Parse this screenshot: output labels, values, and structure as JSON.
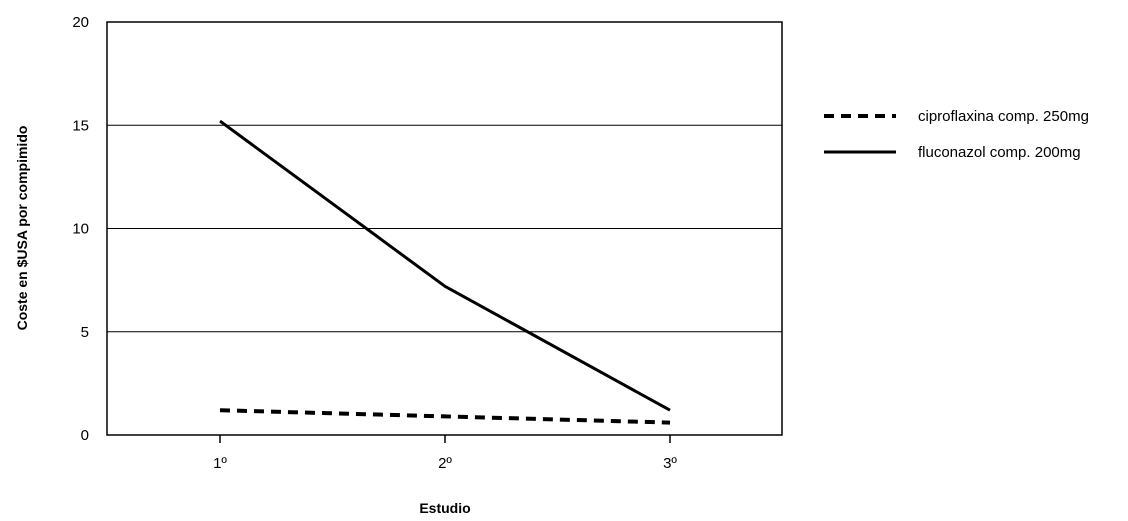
{
  "chart_data": {
    "type": "line",
    "title": "",
    "xlabel": "Estudio",
    "ylabel": "Coste en $USA por compimido",
    "categories": [
      "1º",
      "2º",
      "3º"
    ],
    "ylim": [
      0,
      20
    ],
    "yticks": [
      "0",
      "5",
      "10",
      "15",
      "20"
    ],
    "grid": true,
    "legend_position": "right",
    "series": [
      {
        "name": "ciproflaxina comp. 250mg",
        "values": [
          1.2,
          0.9,
          0.6
        ],
        "line_style": "dashed",
        "color": "#000000"
      },
      {
        "name": "fluconazol comp. 200mg",
        "values": [
          15.2,
          7.2,
          1.2
        ],
        "line_style": "solid",
        "color": "#000000"
      }
    ]
  }
}
